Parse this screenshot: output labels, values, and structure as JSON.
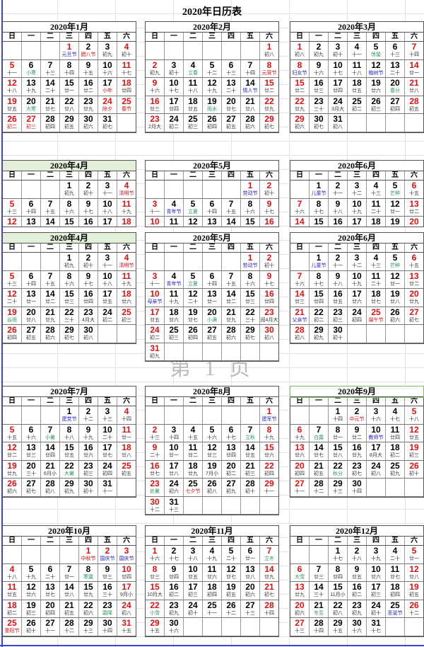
{
  "title": "2020年日历表",
  "watermark": "第 1 页",
  "year": 2020,
  "weekdays": [
    "日",
    "一",
    "二",
    "三",
    "四",
    "五",
    "六"
  ],
  "colors": {
    "weekend_number": "#e01010",
    "holiday_text": "#e01010",
    "festival_text": "#2222dd",
    "solar_term_text": "#2a9a5a",
    "april_title_bg": "#e2efd9"
  },
  "months": [
    {
      "title": "2020年1月",
      "month": 1,
      "extra_red": [
        1,
        24,
        27
      ],
      "marks": {
        "1": "b",
        "2": "r",
        "6": "g",
        "17": "r",
        "20": "g",
        "24": "r",
        "25": "r",
        "26": "r",
        "27": "r"
      },
      "lunar": [
        "元旦节",
        "腊八节",
        "初九",
        "初十",
        "十一",
        "小寒",
        "十三",
        "十四",
        "十五",
        "十六",
        "十七",
        "十八",
        "十九",
        "二十",
        "廿一",
        "廿二",
        "小年",
        "廿四",
        "廿五",
        "大寒",
        "廿七",
        "廿八",
        "廿九",
        "除夕",
        "春节",
        "初二",
        "初三",
        "初四",
        "初五",
        "初六",
        "初七"
      ]
    },
    {
      "title": "2020年2月",
      "month": 2,
      "extra_red": [],
      "marks": {
        "4": "g",
        "8": "r",
        "14": "b",
        "19": "g"
      },
      "lunar": [
        "初八",
        "初九",
        "初十",
        "立春",
        "十二",
        "十三",
        "十四",
        "元宵节",
        "十六",
        "十七",
        "十八",
        "十九",
        "二十",
        "情人节",
        "廿二",
        "廿三",
        "廿四",
        "廿五",
        "雨水",
        "廿七",
        "廿八",
        "廿九",
        "2月大",
        "初二",
        "初三",
        "初四",
        "初五",
        "初六",
        "初七"
      ]
    },
    {
      "title": "2020年3月",
      "month": 3,
      "extra_red": [],
      "marks": {
        "5": "g",
        "8": "b",
        "12": "b",
        "20": "g"
      },
      "lunar": [
        "初八",
        "初九",
        "初十",
        "十一",
        "惊蛰",
        "十三",
        "十四",
        "妇女节",
        "十六",
        "十七",
        "十八",
        "植树节",
        "二十",
        "廿一",
        "廿二",
        "廿三",
        "廿四",
        "廿五",
        "廿六",
        "春分",
        "廿八",
        "廿九",
        "三十",
        "3月大",
        "初二",
        "初三",
        "初四",
        "初五",
        "初六",
        "初七",
        "初八"
      ]
    },
    {
      "title": "2020年4月",
      "month": 4,
      "extra_red": [],
      "marks": {
        "4": "r",
        "19": "g"
      },
      "lunar": [
        "初九",
        "初十",
        "十一",
        "清明节",
        "十三",
        "十四",
        "十五",
        "十六",
        "十七",
        "十八",
        "十九",
        "二十",
        "廿一",
        "廿二",
        "廿三",
        "廿四",
        "廿五",
        "廿六",
        "谷雨",
        "廿八",
        "廿九",
        "三十",
        "4月大",
        "初二",
        "初三",
        "初四",
        "初五",
        "初六",
        "初七",
        "初八"
      ]
    },
    {
      "title": "2020年5月",
      "month": 5,
      "extra_red": [
        1
      ],
      "marks": {
        "1": "b",
        "4": "b",
        "5": "g",
        "10": "b",
        "20": "g"
      },
      "lunar": [
        "劳动节",
        "初十",
        "十一",
        "青年节",
        "立夏",
        "十四",
        "十五",
        "十六",
        "十七",
        "母亲节",
        "十九",
        "二十",
        "廿一",
        "廿二",
        "廿三",
        "廿四",
        "廿五",
        "廿六",
        "廿七",
        "小满",
        "廿九",
        "三十",
        "闰4月大",
        "初二",
        "初三",
        "初四",
        "初五",
        "初六",
        "初七",
        "初八",
        "初九"
      ]
    },
    {
      "title": "2020年6月",
      "month": 6,
      "extra_red": [
        25
      ],
      "marks": {
        "1": "b",
        "5": "g",
        "21": "b",
        "25": "r"
      },
      "lunar": [
        "儿童节",
        "十一",
        "十二",
        "十三",
        "芒种",
        "十五",
        "十六",
        "十七",
        "十八",
        "十九",
        "二十",
        "廿一",
        "廿二",
        "廿三",
        "廿四",
        "廿五",
        "廿六",
        "廿七",
        "廿八",
        "廿九",
        "父亲节",
        "初二",
        "初三",
        "初四",
        "端午节",
        "初六",
        "初七",
        "初八",
        "初九",
        "初十"
      ]
    },
    {
      "title": "2020年7月",
      "month": 7,
      "extra_red": [],
      "marks": {
        "1": "b",
        "7": "g",
        "22": "g"
      },
      "lunar": [
        "建党节",
        "十二",
        "十三",
        "十四",
        "十五",
        "十六",
        "小暑",
        "十八",
        "十九",
        "二十",
        "廿一",
        "廿二",
        "廿三",
        "廿四",
        "廿五",
        "廿六",
        "廿七",
        "廿八",
        "廿九",
        "三十",
        "6月小",
        "大暑",
        "初三",
        "初四",
        "初五",
        "初六",
        "初七",
        "初八",
        "初九",
        "初十",
        "十一"
      ]
    },
    {
      "title": "2020年8月",
      "month": 8,
      "extra_red": [],
      "marks": {
        "1": "b",
        "7": "g",
        "23": "g",
        "25": "r"
      },
      "lunar": [
        "建军节",
        "十三",
        "十四",
        "十五",
        "十六",
        "十七",
        "立秋",
        "十九",
        "二十",
        "廿一",
        "廿二",
        "廿三",
        "廿四",
        "廿五",
        "廿六",
        "廿七",
        "廿八",
        "廿九",
        "7月小",
        "初二",
        "初三",
        "初四",
        "处暑",
        "初六",
        "七夕节",
        "初八",
        "初九",
        "初十",
        "十一",
        "十二",
        "十三"
      ]
    },
    {
      "title": "2020年9月",
      "month": 9,
      "extra_red": [],
      "marks": {
        "2": "r",
        "7": "g",
        "10": "b",
        "22": "g"
      },
      "lunar": [
        "十四",
        "中元节",
        "十六",
        "十七",
        "十八",
        "十九",
        "白露",
        "廿一",
        "廿二",
        "教师节",
        "廿四",
        "廿五",
        "廿六",
        "廿七",
        "廿八",
        "廿九",
        "8月大",
        "初二",
        "初三",
        "初四",
        "初五",
        "秋分",
        "初七",
        "初八",
        "初九",
        "初十",
        "十一",
        "十二",
        "十三",
        "十四"
      ]
    },
    {
      "title": "2020年10月",
      "month": 10,
      "extra_red": [
        1,
        2
      ],
      "marks": {
        "1": "r",
        "2": "b",
        "3": "b",
        "8": "g",
        "23": "g",
        "25": "r"
      },
      "lunar": [
        "中秋节",
        "国庆节",
        "国庆节",
        "十八",
        "十九",
        "二十",
        "廿一",
        "寒露",
        "廿三",
        "廿四",
        "廿五",
        "廿六",
        "廿七",
        "廿八",
        "廿九",
        "三十",
        "9月小",
        "初二",
        "初三",
        "初四",
        "初五",
        "初六",
        "霜降",
        "初八",
        "重阳节",
        "初十",
        "十一",
        "十二",
        "十三",
        "十四",
        "十五"
      ]
    },
    {
      "title": "2020年11月",
      "month": 11,
      "extra_red": [],
      "marks": {
        "7": "g",
        "22": "g"
      },
      "lunar": [
        "十六",
        "十七",
        "十八",
        "十九",
        "二十",
        "廿一",
        "立冬",
        "廿三",
        "廿四",
        "廿五",
        "廿六",
        "廿七",
        "廿八",
        "廿九",
        "10月大",
        "初二",
        "初三",
        "初四",
        "初五",
        "初六",
        "初七",
        "小雪",
        "初九",
        "初十",
        "十一",
        "十二",
        "十三",
        "十四",
        "十五",
        "十六"
      ]
    },
    {
      "title": "2020年12月",
      "month": 12,
      "extra_red": [],
      "marks": {
        "6": "g",
        "21": "g",
        "25": "b"
      },
      "lunar": [
        "十七",
        "十八",
        "十九",
        "二十",
        "廿一",
        "大雪",
        "廿三",
        "廿四",
        "廿五",
        "廿六",
        "廿七",
        "廿八",
        "廿九",
        "三十",
        "11月小",
        "初二",
        "初三",
        "初四",
        "初五",
        "初六",
        "冬至",
        "初八",
        "初九",
        "初十",
        "圣诞节",
        "十二",
        "十三",
        "十四",
        "十五",
        "十六",
        "十七"
      ]
    }
  ]
}
